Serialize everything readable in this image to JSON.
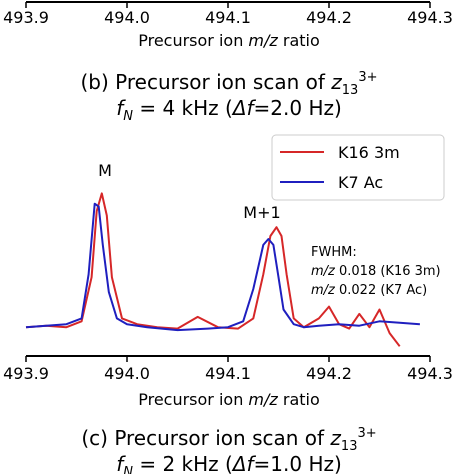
{
  "chart_data": [
    {
      "type": "line",
      "panel": "top (partially visible)",
      "xlim": [
        493.9,
        494.3
      ],
      "xticks": [
        "493.9",
        "494.0",
        "494.1",
        "494.2",
        "494.3"
      ],
      "xlabel_parts": [
        "Precursor ion ",
        "m/z",
        " ratio"
      ],
      "caption": {
        "line1": [
          "(b) Precursor ion scan of ",
          "z",
          "13",
          "3+"
        ],
        "line2": [
          "f",
          "N",
          " = 4 kHz (",
          "Δf",
          "=2.0 Hz)"
        ]
      }
    },
    {
      "type": "line",
      "panel": "bottom",
      "xlim": [
        493.9,
        494.3
      ],
      "ylim": [
        0,
        1.05
      ],
      "xticks": [
        "493.9",
        "494.0",
        "494.1",
        "494.2",
        "494.3"
      ],
      "xlabel_parts": [
        "Precursor ion ",
        "m/z",
        " ratio"
      ],
      "legend_position": "upper-right",
      "peak_labels": [
        "M",
        "M+1"
      ],
      "fwhm": {
        "title": "FWHM:",
        "lines": [
          [
            "m/z",
            " 0.018 (K16 3m)"
          ],
          [
            "m/z",
            " 0.022 (K7 Ac)"
          ]
        ]
      },
      "caption": {
        "line1": [
          "(c) Precursor ion scan of ",
          "z",
          "13",
          "3+"
        ],
        "line2": [
          "f",
          "N",
          " = 2 kHz (",
          "Δf",
          "=1.0 Hz)"
        ]
      },
      "series": [
        {
          "name": "K16 3m",
          "color": "#d62728",
          "x": [
            493.9,
            493.92,
            493.94,
            493.955,
            493.965,
            493.97,
            493.975,
            493.98,
            493.985,
            493.995,
            494.01,
            494.03,
            494.05,
            494.07,
            494.09,
            494.11,
            494.125,
            494.135,
            494.142,
            494.148,
            494.153,
            494.158,
            494.165,
            494.175,
            494.19,
            494.2,
            494.21,
            494.22,
            494.23,
            494.24,
            494.25,
            494.26,
            494.27
          ],
          "y": [
            0.06,
            0.07,
            0.06,
            0.1,
            0.4,
            0.85,
            0.97,
            0.82,
            0.4,
            0.12,
            0.08,
            0.06,
            0.05,
            0.13,
            0.06,
            0.05,
            0.12,
            0.42,
            0.68,
            0.74,
            0.68,
            0.42,
            0.12,
            0.06,
            0.12,
            0.2,
            0.08,
            0.05,
            0.15,
            0.06,
            0.18,
            0.02,
            -0.07
          ]
        },
        {
          "name": "K7 Ac",
          "color": "#1f1fbf",
          "x": [
            493.9,
            493.92,
            493.94,
            493.955,
            493.962,
            493.968,
            493.972,
            493.976,
            493.982,
            493.99,
            494.0,
            494.02,
            494.05,
            494.08,
            494.1,
            494.115,
            494.125,
            494.135,
            494.14,
            494.145,
            494.15,
            494.155,
            494.165,
            494.175,
            494.19,
            494.21,
            494.23,
            494.25,
            494.27,
            494.29
          ],
          "y": [
            0.06,
            0.07,
            0.08,
            0.12,
            0.42,
            0.9,
            0.88,
            0.62,
            0.3,
            0.12,
            0.08,
            0.06,
            0.04,
            0.05,
            0.06,
            0.1,
            0.32,
            0.62,
            0.66,
            0.62,
            0.4,
            0.18,
            0.08,
            0.06,
            0.07,
            0.08,
            0.07,
            0.1,
            0.09,
            0.08
          ]
        }
      ]
    }
  ]
}
